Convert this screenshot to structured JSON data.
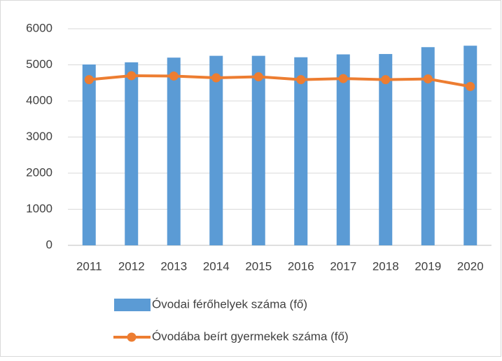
{
  "chart_data": {
    "type": "bar",
    "categories": [
      "2011",
      "2012",
      "2013",
      "2014",
      "2015",
      "2016",
      "2017",
      "2018",
      "2019",
      "2020"
    ],
    "series": [
      {
        "name": "Óvodai férőhelyek száma (fő)",
        "type": "bar",
        "color": "#5b9bd5",
        "values": [
          5010,
          5070,
          5200,
          5250,
          5250,
          5210,
          5290,
          5300,
          5490,
          5530
        ]
      },
      {
        "name": "Óvodába beírt gyermekek száma (fő)",
        "type": "line",
        "color": "#ed7d31",
        "values": [
          4590,
          4700,
          4690,
          4640,
          4670,
          4590,
          4620,
          4590,
          4610,
          4400
        ]
      }
    ],
    "ylim": [
      0,
      6000
    ],
    "yticks": [
      0,
      1000,
      2000,
      3000,
      4000,
      5000,
      6000
    ],
    "grid": true,
    "legend": "bottom"
  }
}
